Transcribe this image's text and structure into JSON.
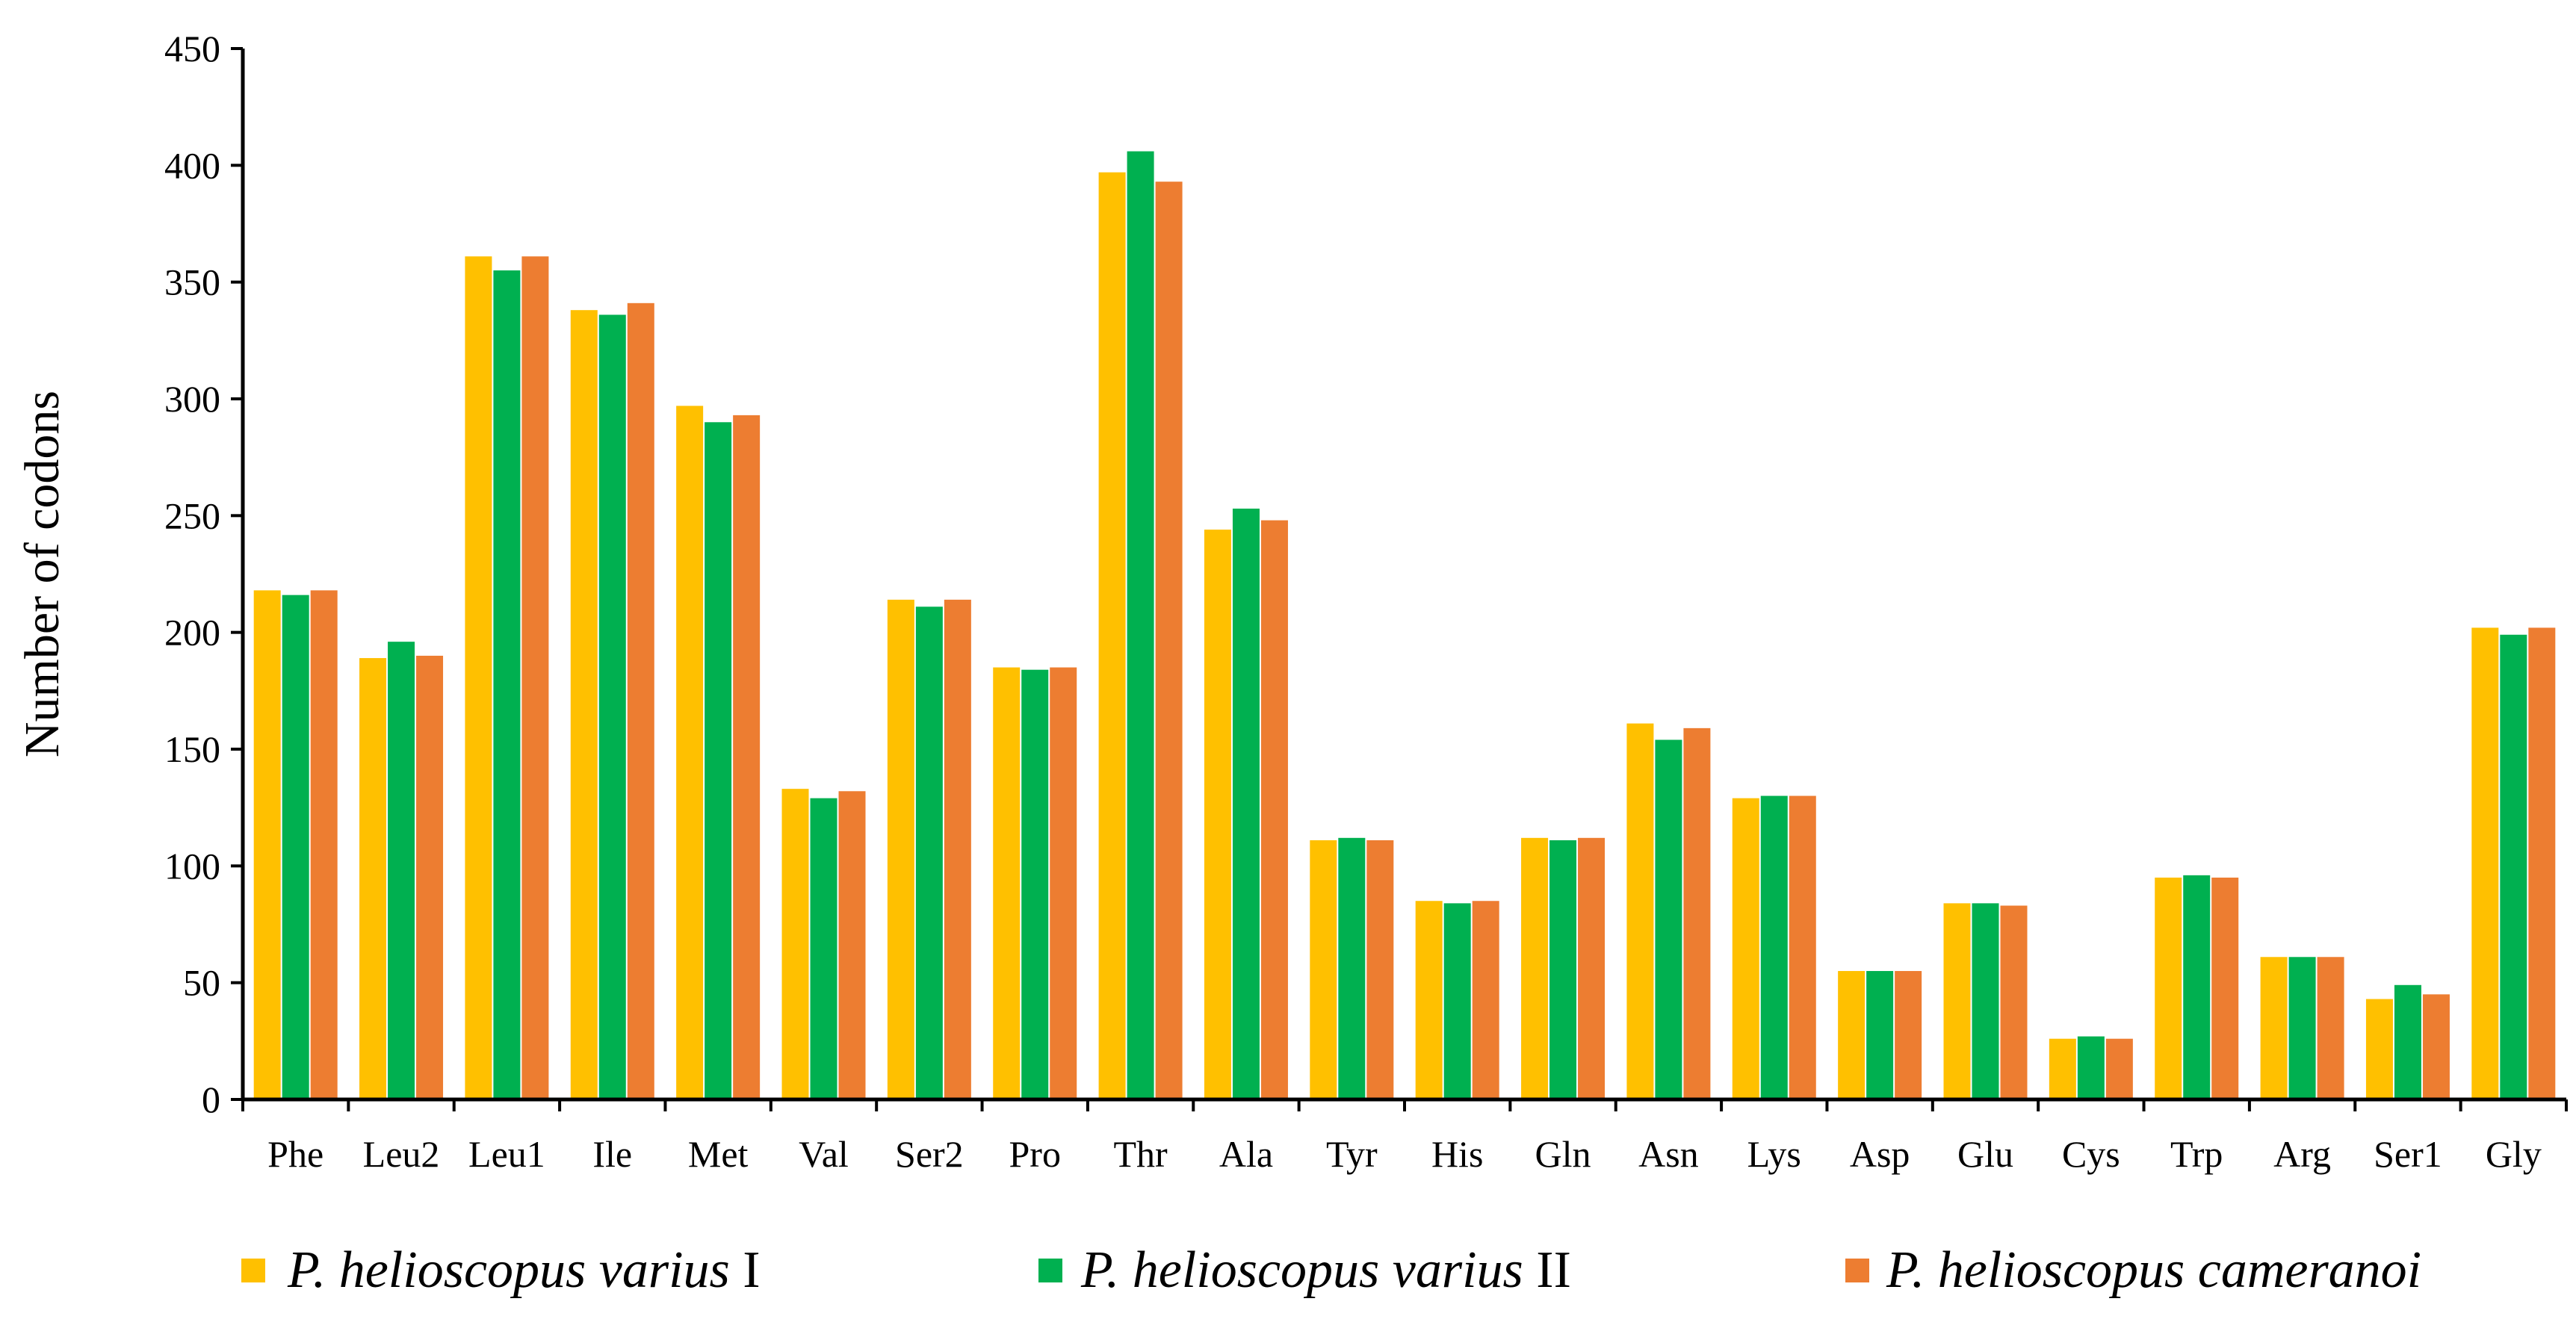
{
  "chart_data": {
    "type": "bar",
    "title": "",
    "xlabel": "",
    "ylabel": "Number of codons",
    "ylim": [
      0,
      450
    ],
    "yticks": [
      0,
      50,
      100,
      150,
      200,
      250,
      300,
      350,
      400,
      450
    ],
    "grid": false,
    "legend_position": "bottom",
    "categories": [
      "Phe",
      "Leu2",
      "Leu1",
      "Ile",
      "Met",
      "Val",
      "Ser2",
      "Pro",
      "Thr",
      "Ala",
      "Tyr",
      "His",
      "Gln",
      "Asn",
      "Lys",
      "Asp",
      "Glu",
      "Cys",
      "Trp",
      "Arg",
      "Ser1",
      "Gly"
    ],
    "series": [
      {
        "name": "P. helioscopus varius I",
        "name_italic": "P. helioscopus varius",
        "name_suffix": "I",
        "color": "#FFC000",
        "values": [
          218,
          189,
          361,
          338,
          297,
          133,
          214,
          185,
          397,
          244,
          111,
          85,
          112,
          161,
          129,
          55,
          84,
          26,
          95,
          61,
          43,
          202
        ]
      },
      {
        "name": "P. helioscopus varius II",
        "name_italic": "P. helioscopus varius",
        "name_suffix": "II",
        "color": "#00B050",
        "values": [
          216,
          196,
          355,
          336,
          290,
          129,
          211,
          184,
          406,
          253,
          112,
          84,
          111,
          154,
          130,
          55,
          84,
          27,
          96,
          61,
          49,
          199
        ]
      },
      {
        "name": "P. helioscopus cameranoi",
        "name_italic": "P. helioscopus cameranoi",
        "name_suffix": "",
        "color": "#ED7D31",
        "values": [
          218,
          190,
          361,
          341,
          293,
          132,
          214,
          185,
          393,
          248,
          111,
          85,
          112,
          159,
          130,
          55,
          83,
          26,
          95,
          61,
          45,
          202
        ]
      }
    ]
  }
}
